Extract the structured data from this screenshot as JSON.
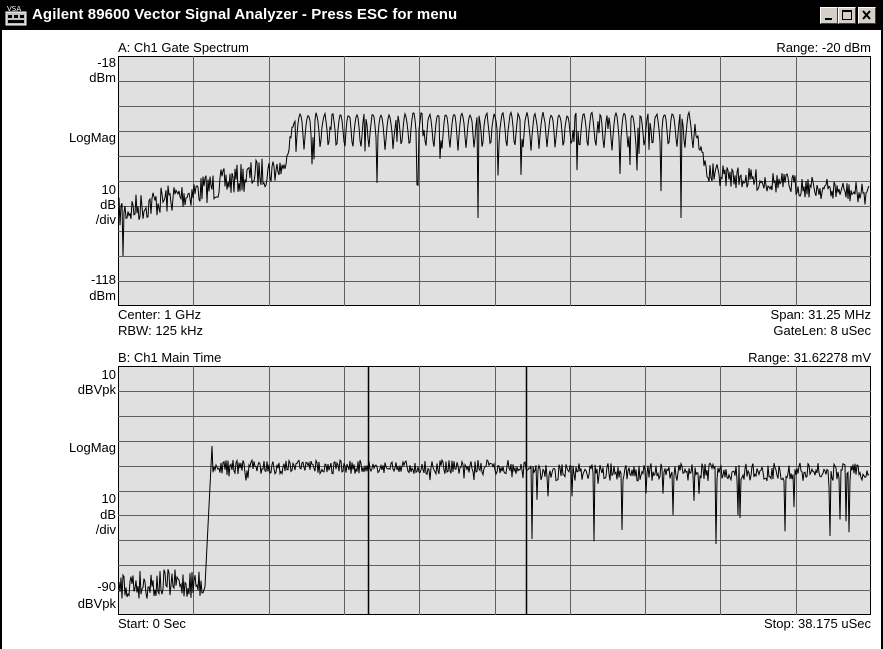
{
  "window": {
    "title": "Agilent 89600 Vector Signal Analyzer - Press ESC for menu",
    "icon_text": "VSA",
    "controls": [
      "minimize-icon",
      "maximize-icon",
      "close-icon"
    ]
  },
  "trace_a": {
    "header_left": "A: Ch1 Gate Spectrum",
    "header_right": "Range: -20 dBm",
    "y_top_value": "-18",
    "y_top_unit": "dBm",
    "y_mid_label": "LogMag",
    "y_scale_value": "10",
    "y_scale_unit": "dB",
    "y_scale_per": "/div",
    "y_bottom_value": "-118",
    "y_bottom_unit": "dBm",
    "footer_left_1": "Center: 1 GHz",
    "footer_left_2": "RBW: 125 kHz",
    "footer_right_1": "Span: 31.25 MHz",
    "footer_right_2": "GateLen: 8 uSec"
  },
  "trace_b": {
    "header_left": "B: Ch1 Main Time",
    "header_right": "Range: 31.62278 mV",
    "y_top_value": "10",
    "y_top_unit": "dBVpk",
    "y_mid_label": "LogMag",
    "y_scale_value": "10",
    "y_scale_unit": "dB",
    "y_scale_per": "/div",
    "y_bottom_value": "-90",
    "y_bottom_unit": "dBVpk",
    "footer_left": "Start: 0  Sec",
    "footer_right": "Stop: 38.175 uSec"
  },
  "colors": {
    "titlebar": "#000000",
    "grid_background": "#e0e0e0",
    "grid_lines": "#606060",
    "trace": "#000000"
  }
}
